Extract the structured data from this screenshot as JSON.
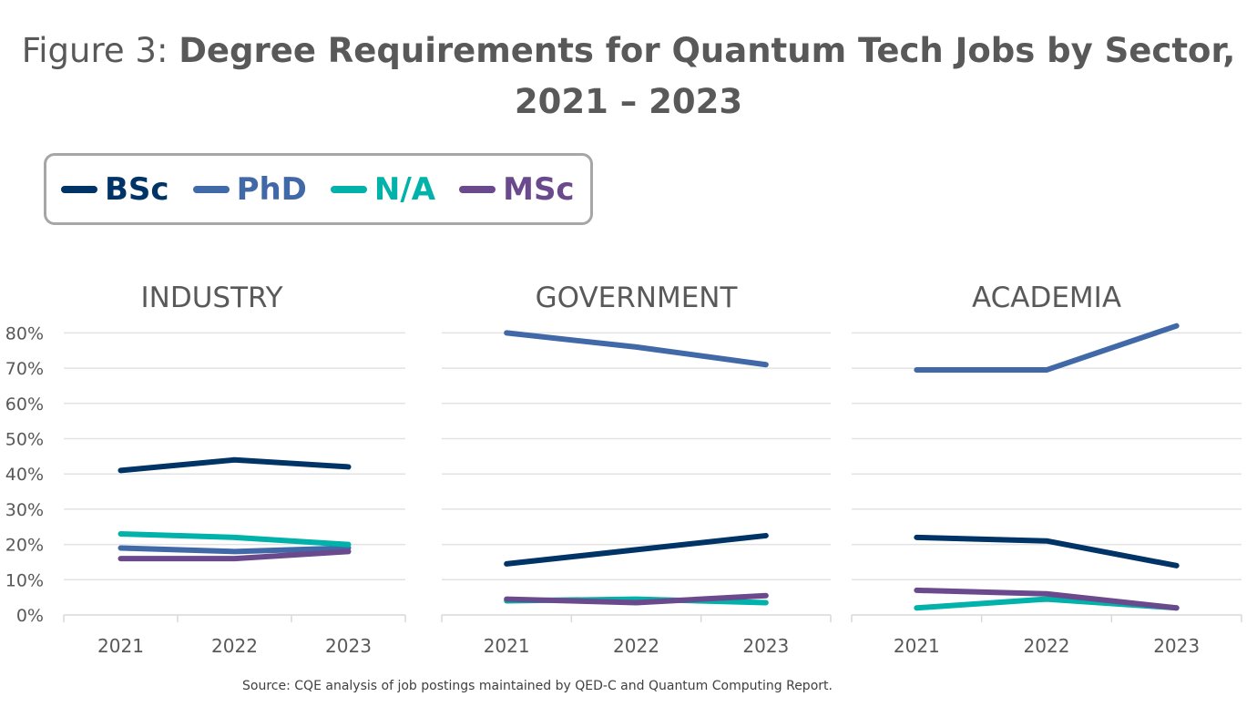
{
  "title": {
    "prefix": "Figure 3: ",
    "main_line1": "Degree Requirements for Quantum Tech Jobs by Sector,",
    "main_line2": "2021 – 2023"
  },
  "source": "Source: CQE analysis of job postings maintained by QED-C and Quantum Computing Report.",
  "legend": [
    {
      "name": "BSc",
      "color": "#003366"
    },
    {
      "name": "PhD",
      "color": "#4169a8"
    },
    {
      "name": "N/A",
      "color": "#00b2a9"
    },
    {
      "name": "MSc",
      "color": "#6a4a8c"
    }
  ],
  "chart_data": [
    {
      "type": "line",
      "title": "INDUSTRY",
      "categories": [
        "2021",
        "2022",
        "2023"
      ],
      "ylim": [
        0,
        80
      ],
      "yticks": [
        "0%",
        "10%",
        "20%",
        "30%",
        "40%",
        "50%",
        "60%",
        "70%",
        "80%"
      ],
      "grid": true,
      "series": [
        {
          "name": "BSc",
          "values": [
            41,
            44,
            42
          ]
        },
        {
          "name": "PhD",
          "values": [
            19,
            18,
            19
          ]
        },
        {
          "name": "N/A",
          "values": [
            23,
            22,
            20
          ]
        },
        {
          "name": "MSc",
          "values": [
            16,
            16,
            18
          ]
        }
      ]
    },
    {
      "type": "line",
      "title": "GOVERNMENT",
      "categories": [
        "2021",
        "2022",
        "2023"
      ],
      "ylim": [
        0,
        80
      ],
      "grid": true,
      "series": [
        {
          "name": "BSc",
          "values": [
            14.5,
            18.5,
            22.5
          ]
        },
        {
          "name": "PhD",
          "values": [
            80,
            76,
            71
          ]
        },
        {
          "name": "N/A",
          "values": [
            4,
            4.5,
            3.5
          ]
        },
        {
          "name": "MSc",
          "values": [
            4.5,
            3.5,
            5.5
          ]
        }
      ]
    },
    {
      "type": "line",
      "title": "ACADEMIA",
      "categories": [
        "2021",
        "2022",
        "2023"
      ],
      "ylim": [
        0,
        80
      ],
      "grid": true,
      "series": [
        {
          "name": "BSc",
          "values": [
            22,
            21,
            14
          ]
        },
        {
          "name": "PhD",
          "values": [
            69.5,
            69.5,
            82
          ]
        },
        {
          "name": "N/A",
          "values": [
            2,
            4.5,
            2
          ]
        },
        {
          "name": "MSc",
          "values": [
            7,
            6,
            2
          ]
        }
      ]
    }
  ]
}
